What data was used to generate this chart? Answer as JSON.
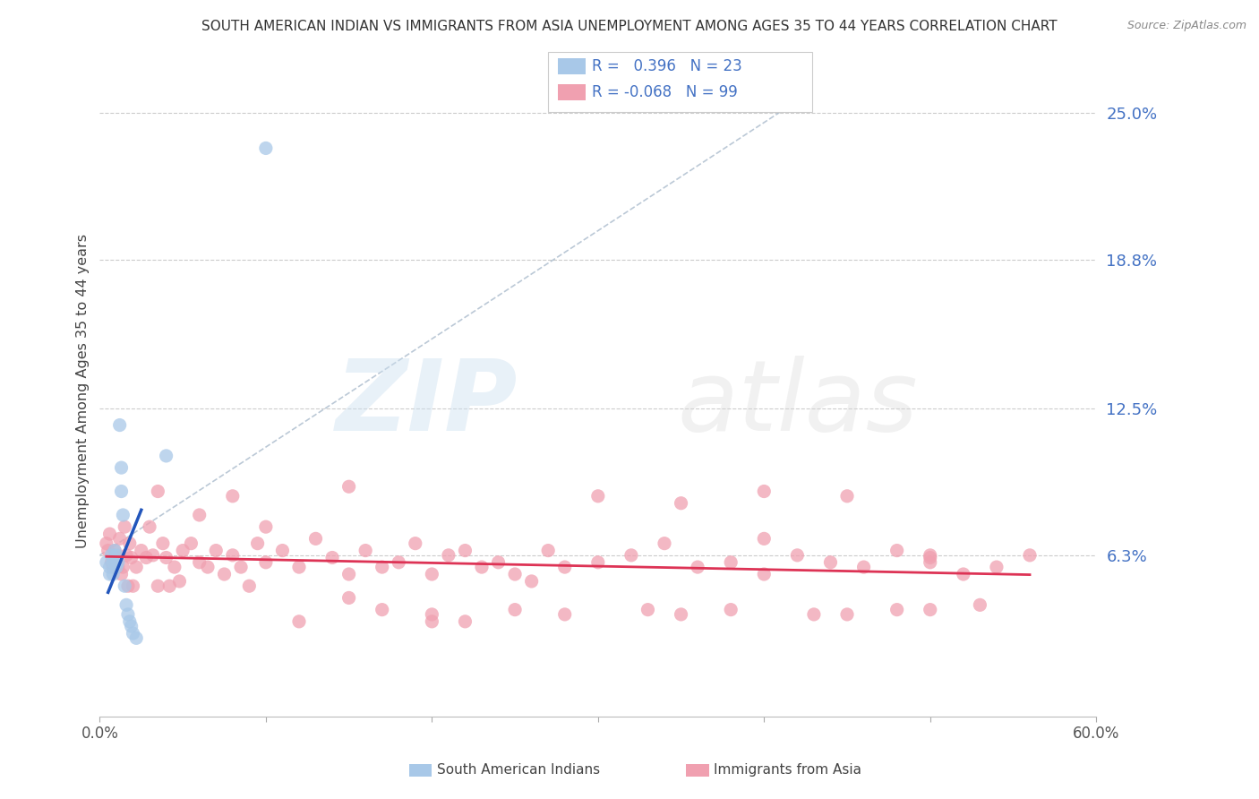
{
  "title": "SOUTH AMERICAN INDIAN VS IMMIGRANTS FROM ASIA UNEMPLOYMENT AMONG AGES 35 TO 44 YEARS CORRELATION CHART",
  "source": "Source: ZipAtlas.com",
  "ylabel": "Unemployment Among Ages 35 to 44 years",
  "ytick_labels": [
    "6.3%",
    "12.5%",
    "18.8%",
    "25.0%"
  ],
  "ytick_values": [
    0.063,
    0.125,
    0.188,
    0.25
  ],
  "xlim": [
    0.0,
    0.6
  ],
  "ylim": [
    -0.005,
    0.27
  ],
  "legend_blue_label": "South American Indians",
  "legend_pink_label": "Immigrants from Asia",
  "R_blue": 0.396,
  "N_blue": 23,
  "R_pink": -0.068,
  "N_pink": 99,
  "blue_color": "#a8c8e8",
  "blue_line_color": "#2255bb",
  "pink_color": "#f0a0b0",
  "pink_line_color": "#dd3355",
  "text_color": "#4472c4",
  "blue_scatter_x": [
    0.004,
    0.006,
    0.006,
    0.007,
    0.008,
    0.008,
    0.009,
    0.01,
    0.01,
    0.011,
    0.012,
    0.013,
    0.013,
    0.014,
    0.015,
    0.016,
    0.017,
    0.018,
    0.019,
    0.02,
    0.022,
    0.04,
    0.1
  ],
  "blue_scatter_y": [
    0.06,
    0.058,
    0.055,
    0.063,
    0.06,
    0.055,
    0.065,
    0.063,
    0.058,
    0.06,
    0.118,
    0.1,
    0.09,
    0.08,
    0.05,
    0.042,
    0.038,
    0.035,
    0.033,
    0.03,
    0.028,
    0.105,
    0.235
  ],
  "pink_scatter_x": [
    0.004,
    0.005,
    0.006,
    0.007,
    0.008,
    0.009,
    0.01,
    0.011,
    0.012,
    0.013,
    0.014,
    0.015,
    0.016,
    0.017,
    0.018,
    0.019,
    0.02,
    0.022,
    0.025,
    0.028,
    0.03,
    0.032,
    0.035,
    0.038,
    0.04,
    0.042,
    0.045,
    0.048,
    0.05,
    0.055,
    0.06,
    0.065,
    0.07,
    0.075,
    0.08,
    0.085,
    0.09,
    0.095,
    0.1,
    0.11,
    0.12,
    0.13,
    0.14,
    0.15,
    0.16,
    0.17,
    0.18,
    0.19,
    0.2,
    0.21,
    0.22,
    0.23,
    0.24,
    0.25,
    0.26,
    0.27,
    0.28,
    0.3,
    0.32,
    0.34,
    0.36,
    0.38,
    0.4,
    0.42,
    0.44,
    0.46,
    0.48,
    0.5,
    0.52,
    0.54,
    0.56,
    0.035,
    0.08,
    0.15,
    0.2,
    0.25,
    0.3,
    0.35,
    0.4,
    0.45,
    0.5,
    0.12,
    0.17,
    0.22,
    0.28,
    0.33,
    0.38,
    0.43,
    0.48,
    0.53,
    0.4,
    0.45,
    0.5,
    0.06,
    0.1,
    0.2,
    0.35,
    0.5,
    0.15
  ],
  "pink_scatter_y": [
    0.068,
    0.065,
    0.072,
    0.06,
    0.058,
    0.065,
    0.062,
    0.058,
    0.07,
    0.055,
    0.058,
    0.075,
    0.063,
    0.05,
    0.068,
    0.062,
    0.05,
    0.058,
    0.065,
    0.062,
    0.075,
    0.063,
    0.05,
    0.068,
    0.062,
    0.05,
    0.058,
    0.052,
    0.065,
    0.068,
    0.06,
    0.058,
    0.065,
    0.055,
    0.063,
    0.058,
    0.05,
    0.068,
    0.06,
    0.065,
    0.058,
    0.07,
    0.062,
    0.055,
    0.065,
    0.058,
    0.06,
    0.068,
    0.055,
    0.063,
    0.065,
    0.058,
    0.06,
    0.055,
    0.052,
    0.065,
    0.058,
    0.06,
    0.063,
    0.068,
    0.058,
    0.06,
    0.055,
    0.063,
    0.06,
    0.058,
    0.065,
    0.06,
    0.055,
    0.058,
    0.063,
    0.09,
    0.088,
    0.092,
    0.038,
    0.04,
    0.088,
    0.085,
    0.09,
    0.038,
    0.062,
    0.035,
    0.04,
    0.035,
    0.038,
    0.04,
    0.04,
    0.038,
    0.04,
    0.042,
    0.07,
    0.088,
    0.063,
    0.08,
    0.075,
    0.035,
    0.038,
    0.04,
    0.045
  ]
}
